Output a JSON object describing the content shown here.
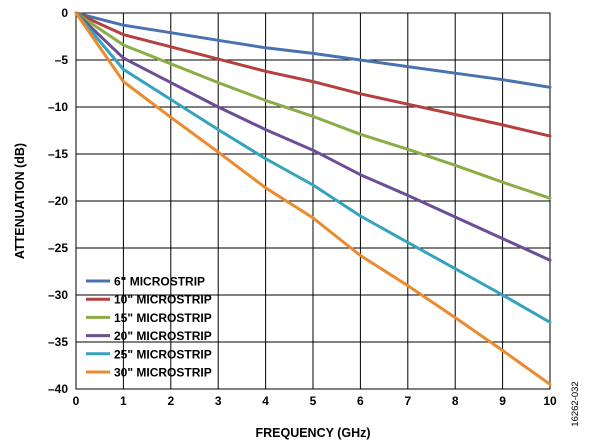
{
  "chart_data": {
    "type": "line",
    "title": "",
    "xlabel": "FREQUENCY (GHz)",
    "ylabel": "ATTENUATION (dB)",
    "xlim": [
      0,
      10
    ],
    "ylim": [
      -40,
      0
    ],
    "xticks": [
      0,
      1,
      2,
      3,
      4,
      5,
      6,
      7,
      8,
      9,
      10
    ],
    "yticks": [
      0,
      -5,
      -10,
      -15,
      -20,
      -25,
      -30,
      -35,
      -40
    ],
    "ytick_labels": [
      "0",
      "–5",
      "–10",
      "–15",
      "–20",
      "–25",
      "–30",
      "–35",
      "–40"
    ],
    "grid": true,
    "legend_position": "bottom-left",
    "x": [
      0,
      1,
      2,
      3,
      4,
      5,
      6,
      7,
      8,
      9,
      10
    ],
    "series": [
      {
        "name": "6\" MICROSTRIP",
        "color": "#4a72b0",
        "values": [
          0,
          -1.3,
          -2.1,
          -2.9,
          -3.7,
          -4.3,
          -5.0,
          -5.7,
          -6.4,
          -7.1,
          -7.9
        ]
      },
      {
        "name": "10\" MICROSTRIP",
        "color": "#b5413f",
        "values": [
          0,
          -2.3,
          -3.6,
          -4.9,
          -6.2,
          -7.3,
          -8.6,
          -9.7,
          -10.8,
          -11.9,
          -13.1
        ]
      },
      {
        "name": "15\" MICROSTRIP",
        "color": "#8aad45",
        "values": [
          0,
          -3.4,
          -5.4,
          -7.4,
          -9.3,
          -11.0,
          -12.9,
          -14.5,
          -16.2,
          -18.0,
          -19.7
        ]
      },
      {
        "name": "20\" MICROSTRIP",
        "color": "#6c4e97",
        "values": [
          0,
          -4.8,
          -7.4,
          -10.0,
          -12.4,
          -14.6,
          -17.2,
          -19.4,
          -21.7,
          -24.0,
          -26.3
        ]
      },
      {
        "name": "25\" MICROSTRIP",
        "color": "#35a3be",
        "values": [
          0,
          -6.0,
          -9.2,
          -12.4,
          -15.5,
          -18.3,
          -21.6,
          -24.4,
          -27.2,
          -30.0,
          -32.9
        ]
      },
      {
        "name": "30\" MICROSTRIP",
        "color": "#ec8a2e",
        "values": [
          0,
          -7.3,
          -11.1,
          -14.8,
          -18.6,
          -21.8,
          -25.8,
          -29.0,
          -32.4,
          -35.9,
          -39.5
        ]
      }
    ]
  },
  "figure_id": "16262-032"
}
